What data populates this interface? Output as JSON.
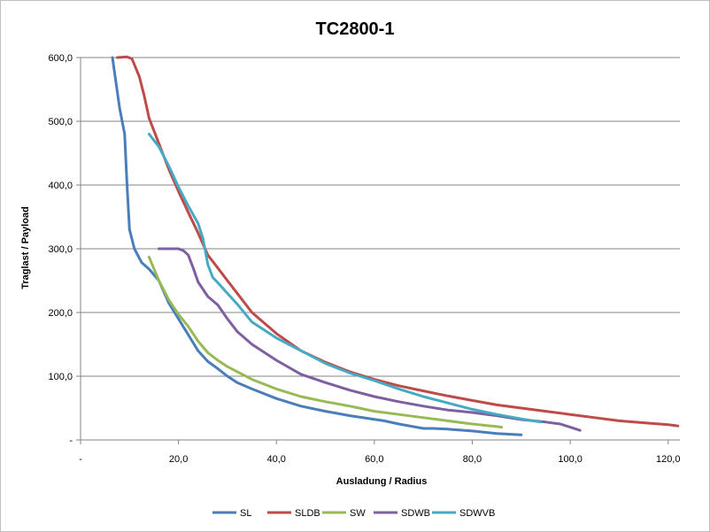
{
  "chart_data": {
    "type": "line",
    "title": "TC2800-1",
    "xlabel": "Ausladung / Radius",
    "ylabel": "Traglast / Payload",
    "xlim": [
      0,
      122.4
    ],
    "ylim": [
      0,
      600
    ],
    "x_ticks": [
      0,
      20,
      40,
      60,
      80,
      100,
      120
    ],
    "x_tick_labels": [
      "-",
      "20,0",
      "40,0",
      "60,0",
      "80,0",
      "100,0",
      "120,0"
    ],
    "y_ticks": [
      0,
      100,
      200,
      300,
      400,
      500,
      600
    ],
    "y_tick_labels": [
      "-",
      "100,0",
      "200,0",
      "300,0",
      "400,0",
      "500,0",
      "600,0"
    ],
    "grid": "horizontal",
    "legend_position": "bottom",
    "series": [
      {
        "name": "SL",
        "color": "#4a7ebb",
        "points": [
          [
            6.5,
            600
          ],
          [
            8,
            520
          ],
          [
            9,
            480
          ],
          [
            9.5,
            400
          ],
          [
            10,
            330
          ],
          [
            11,
            300
          ],
          [
            12.5,
            278
          ],
          [
            14,
            268
          ],
          [
            16,
            250
          ],
          [
            18,
            215
          ],
          [
            20,
            190
          ],
          [
            22,
            165
          ],
          [
            24,
            140
          ],
          [
            26,
            123
          ],
          [
            28,
            112
          ],
          [
            30,
            100
          ],
          [
            32,
            90
          ],
          [
            35,
            80
          ],
          [
            40,
            65
          ],
          [
            45,
            53
          ],
          [
            50,
            45
          ],
          [
            55,
            38
          ],
          [
            62,
            30
          ],
          [
            65,
            25
          ],
          [
            70,
            18
          ],
          [
            72,
            18
          ],
          [
            75,
            17
          ],
          [
            80,
            14
          ],
          [
            85,
            10
          ],
          [
            90,
            8
          ]
        ]
      },
      {
        "name": "SLDB",
        "color": "#be4b48",
        "points": [
          [
            7.5,
            600
          ],
          [
            9.5,
            601
          ],
          [
            10.5,
            598
          ],
          [
            12,
            570
          ],
          [
            13,
            540
          ],
          [
            14,
            505
          ],
          [
            16,
            465
          ],
          [
            18,
            425
          ],
          [
            20,
            390
          ],
          [
            22,
            357
          ],
          [
            24,
            325
          ],
          [
            26,
            290
          ],
          [
            28,
            270
          ],
          [
            30,
            250
          ],
          [
            32,
            230
          ],
          [
            35,
            200
          ],
          [
            40,
            167
          ],
          [
            45,
            140
          ],
          [
            50,
            122
          ],
          [
            55,
            107
          ],
          [
            60,
            95
          ],
          [
            65,
            85
          ],
          [
            70,
            77
          ],
          [
            75,
            69
          ],
          [
            80,
            62
          ],
          [
            85,
            55
          ],
          [
            90,
            50
          ],
          [
            95,
            45
          ],
          [
            100,
            40
          ],
          [
            105,
            35
          ],
          [
            110,
            30
          ],
          [
            115,
            27
          ],
          [
            120,
            24
          ],
          [
            122,
            22
          ]
        ]
      },
      {
        "name": "SW",
        "color": "#98b954",
        "points": [
          [
            14,
            287
          ],
          [
            16,
            250
          ],
          [
            18,
            220
          ],
          [
            20,
            197
          ],
          [
            22,
            178
          ],
          [
            24,
            155
          ],
          [
            26,
            137
          ],
          [
            28,
            125
          ],
          [
            30,
            115
          ],
          [
            35,
            95
          ],
          [
            40,
            80
          ],
          [
            45,
            68
          ],
          [
            50,
            60
          ],
          [
            55,
            53
          ],
          [
            60,
            45
          ],
          [
            65,
            40
          ],
          [
            70,
            35
          ],
          [
            75,
            30
          ],
          [
            80,
            25
          ],
          [
            85,
            21
          ],
          [
            86,
            20
          ]
        ]
      },
      {
        "name": "SDWB",
        "color": "#7d60a0",
        "points": [
          [
            16,
            300
          ],
          [
            18,
            300
          ],
          [
            20,
            300
          ],
          [
            21,
            297
          ],
          [
            22,
            290
          ],
          [
            23,
            270
          ],
          [
            24,
            248
          ],
          [
            26,
            225
          ],
          [
            28,
            212
          ],
          [
            30,
            190
          ],
          [
            32,
            170
          ],
          [
            35,
            150
          ],
          [
            40,
            125
          ],
          [
            45,
            103
          ],
          [
            50,
            90
          ],
          [
            55,
            78
          ],
          [
            60,
            68
          ],
          [
            65,
            60
          ],
          [
            70,
            53
          ],
          [
            75,
            47
          ],
          [
            80,
            43
          ],
          [
            85,
            38
          ],
          [
            90,
            32
          ],
          [
            95,
            28
          ],
          [
            98,
            25
          ],
          [
            100,
            20
          ],
          [
            102,
            15
          ]
        ]
      },
      {
        "name": "SDWVB",
        "color": "#46aac4",
        "points": [
          [
            14,
            480
          ],
          [
            16,
            460
          ],
          [
            18,
            430
          ],
          [
            20,
            397
          ],
          [
            22,
            367
          ],
          [
            24,
            340
          ],
          [
            25,
            316
          ],
          [
            26,
            275
          ],
          [
            27,
            255
          ],
          [
            28,
            247
          ],
          [
            30,
            230
          ],
          [
            32,
            213
          ],
          [
            35,
            185
          ],
          [
            40,
            160
          ],
          [
            45,
            140
          ],
          [
            50,
            120
          ],
          [
            55,
            105
          ],
          [
            60,
            93
          ],
          [
            65,
            80
          ],
          [
            70,
            68
          ],
          [
            75,
            58
          ],
          [
            80,
            48
          ],
          [
            85,
            40
          ],
          [
            90,
            33
          ],
          [
            94,
            28
          ]
        ]
      }
    ]
  }
}
